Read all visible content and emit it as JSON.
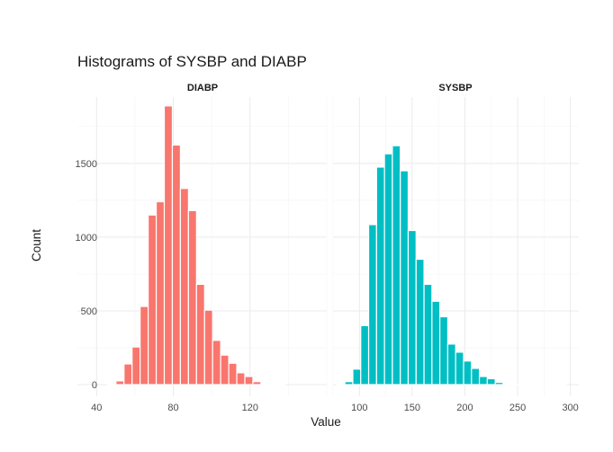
{
  "chart_data": {
    "type": "bar",
    "title": "Histograms of SYSBP and DIABP",
    "xlabel": "Value",
    "ylabel": "Count",
    "ylim": [
      0,
      1950
    ],
    "y_ticks": [
      0,
      500,
      1000,
      1500
    ],
    "grid": true,
    "legend": "none",
    "panels": [
      {
        "name": "DIABP",
        "color": "#F8766D",
        "xlim": [
          30,
          160
        ],
        "x_ticks": [
          40,
          80,
          120
        ],
        "bin_width": 4.2,
        "bin_centers": [
          48.0,
          52.2,
          56.4,
          60.6,
          64.8,
          69.0,
          73.2,
          77.4,
          81.6,
          85.8,
          90.0,
          94.2,
          98.4,
          102.6,
          106.8,
          111.0,
          115.2,
          119.4,
          123.6,
          127.8,
          132.0,
          136.2
        ],
        "counts": [
          5,
          25,
          140,
          255,
          530,
          1150,
          1240,
          1890,
          1625,
          1330,
          1180,
          680,
          505,
          300,
          200,
          145,
          80,
          55,
          20,
          5,
          2,
          1
        ]
      },
      {
        "name": "SYSBP",
        "color": "#00BFC4",
        "xlim": [
          75,
          308
        ],
        "x_ticks": [
          100,
          150,
          200,
          250,
          300
        ],
        "bin_width": 7.5,
        "bin_centers": [
          82.5,
          90.0,
          97.5,
          105.0,
          112.5,
          120.0,
          127.5,
          135.0,
          142.5,
          150.0,
          157.5,
          165.0,
          172.5,
          180.0,
          187.5,
          195.0,
          202.5,
          210.0,
          217.5,
          225.0,
          232.5,
          240.0,
          247.5,
          255.0,
          262.5,
          270.0,
          277.5,
          285.0,
          292.5
        ],
        "counts": [
          3,
          20,
          105,
          400,
          1085,
          1475,
          1565,
          1620,
          1450,
          1045,
          850,
          680,
          565,
          460,
          275,
          220,
          160,
          110,
          55,
          40,
          15,
          5,
          2,
          5,
          2,
          1,
          1,
          1,
          2
        ]
      }
    ]
  }
}
